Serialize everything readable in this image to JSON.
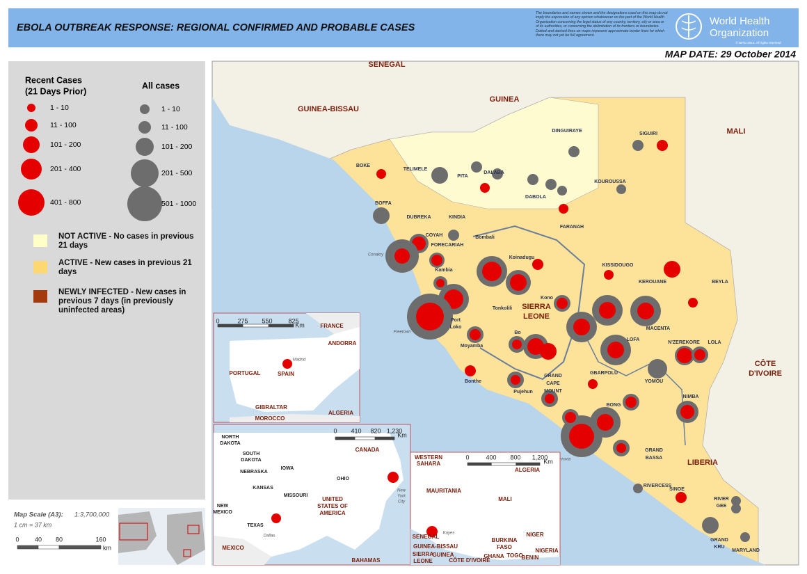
{
  "header": {
    "title": "EBOLA OUTBREAK RESPONSE: REGIONAL CONFIRMED AND PROBABLE CASES",
    "disclaimer": "The boundaries and names shown and the designations used on this map do not imply the expression of any opinion whatsoever on the part of the World Health Organization concerning the legal status of any country, territory, city or area or of its authorities, or concerning the delimitation of its frontiers or boundaries. Dotted and dashed lines on maps represent approximate border lines for which there may not yet be full agreement.",
    "org": [
      "World Health",
      "Organization"
    ],
    "copyright": "© WHO 2014. All rights reserved",
    "map_date": "MAP DATE: 29 October 2014"
  },
  "legend": {
    "recent_title": [
      "Recent Cases",
      "(21 Days Prior)"
    ],
    "recent_classes": [
      "1 - 10",
      "11 - 100",
      "101 - 200",
      "201 - 400",
      "401 - 800"
    ],
    "all_title": "All cases",
    "all_classes": [
      "1 - 10",
      "11 - 100",
      "101 - 200",
      "201 - 500",
      "501 - 1000"
    ],
    "status": [
      {
        "label": "NOT ACTIVE - No cases in previous 21 days",
        "color": "#ffffc8"
      },
      {
        "label": "ACTIVE - New cases in previous 21 days",
        "color": "#fdd870"
      },
      {
        "label": "NEWLY INFECTED - New cases in previous  7 days (in previously uninfected areas)",
        "color": "#a3390c"
      }
    ]
  },
  "scale": {
    "label": "Map Scale (A3):",
    "ratio": "1:3,700,000",
    "equiv": "1 cm = 37 km",
    "ticks": [
      "0",
      "40",
      "80",
      "160"
    ],
    "unit": "km"
  },
  "map": {
    "labels": [
      "SENEGAL",
      "GUINEA-BISSAU",
      "GUINEA",
      "MALI",
      "SIERRA",
      "LEONE",
      "LIBERIA",
      "CÔTE",
      "D'IVOIRE",
      "BOKE",
      "BOFFA",
      "TELIMELE",
      "PITA",
      "DALABA",
      "DINGUIRAYE",
      "SIGUIRI",
      "DABOLA",
      "KOUROUSSA",
      "FARANAH",
      "DUBREKA",
      "KINDIA",
      "COYAH",
      "FORECARIAH",
      "Bombali",
      "Kambia",
      "Koinadugu",
      "Port",
      "Loko",
      "Tonkolili",
      "Kono",
      "Moyamba",
      "Bo",
      "Bonthe",
      "Pujehun",
      "GRAND",
      "CAPE",
      "MOUNT",
      "KISSIDOUGO",
      "KEROUANE",
      "BEYLA",
      "MACENTA",
      "LOFA",
      "N'ZEREKORE",
      "LOLA",
      "YOMOU",
      "GBARPOLU",
      "BONG",
      "NIMBA",
      "GRAND",
      "BASSA",
      "RIVERCESS",
      "SINOE",
      "RIVER",
      "GEE",
      "GRAND",
      "KRU",
      "MARYLAND",
      "Conakry",
      "Freetown",
      "Monrovia"
    ]
  },
  "insets": [
    {
      "labels": [
        "FRANCE",
        "ANDORRA",
        "PORTUGAL",
        "SPAIN",
        "Madrid",
        "GIBRALTAR",
        "MOROCCO",
        "ALGERIA"
      ],
      "scale_ticks": [
        "0",
        "275",
        "550",
        "825"
      ],
      "scale_unit": "Km"
    },
    {
      "labels": [
        "NORTH",
        "DAKOTA",
        "SOUTH",
        "DAKOTA",
        "NEBRASKA",
        "KANSAS",
        "IOWA",
        "MISSOURI",
        "OHIO",
        "UNITED",
        "STATES OF",
        "AMERICA",
        "CANADA",
        "NEW",
        "MEXICO",
        "TEXAS",
        "Dallas",
        "MEXICO",
        "BAHAMAS",
        "New",
        "York",
        "City"
      ],
      "scale_ticks": [
        "0",
        "410",
        "820",
        "1,230"
      ],
      "scale_unit": "Km"
    },
    {
      "labels": [
        "WESTERN",
        "SAHARA",
        "ALGERIA",
        "MAURITANIA",
        "MALI",
        "SENEGAL",
        "GUINEA-BISSAU",
        "SIERRA",
        "LEONE",
        "GUINEA",
        "CÔTE D'IVOIRE",
        "Kayes",
        "BURKINA",
        "FASO",
        "NIGER",
        "GHANA",
        "TOGO",
        "BENIN",
        "NIGERIA"
      ],
      "scale_ticks": [
        "0",
        "400",
        "800",
        "1,200"
      ],
      "scale_unit": "Km"
    }
  ]
}
